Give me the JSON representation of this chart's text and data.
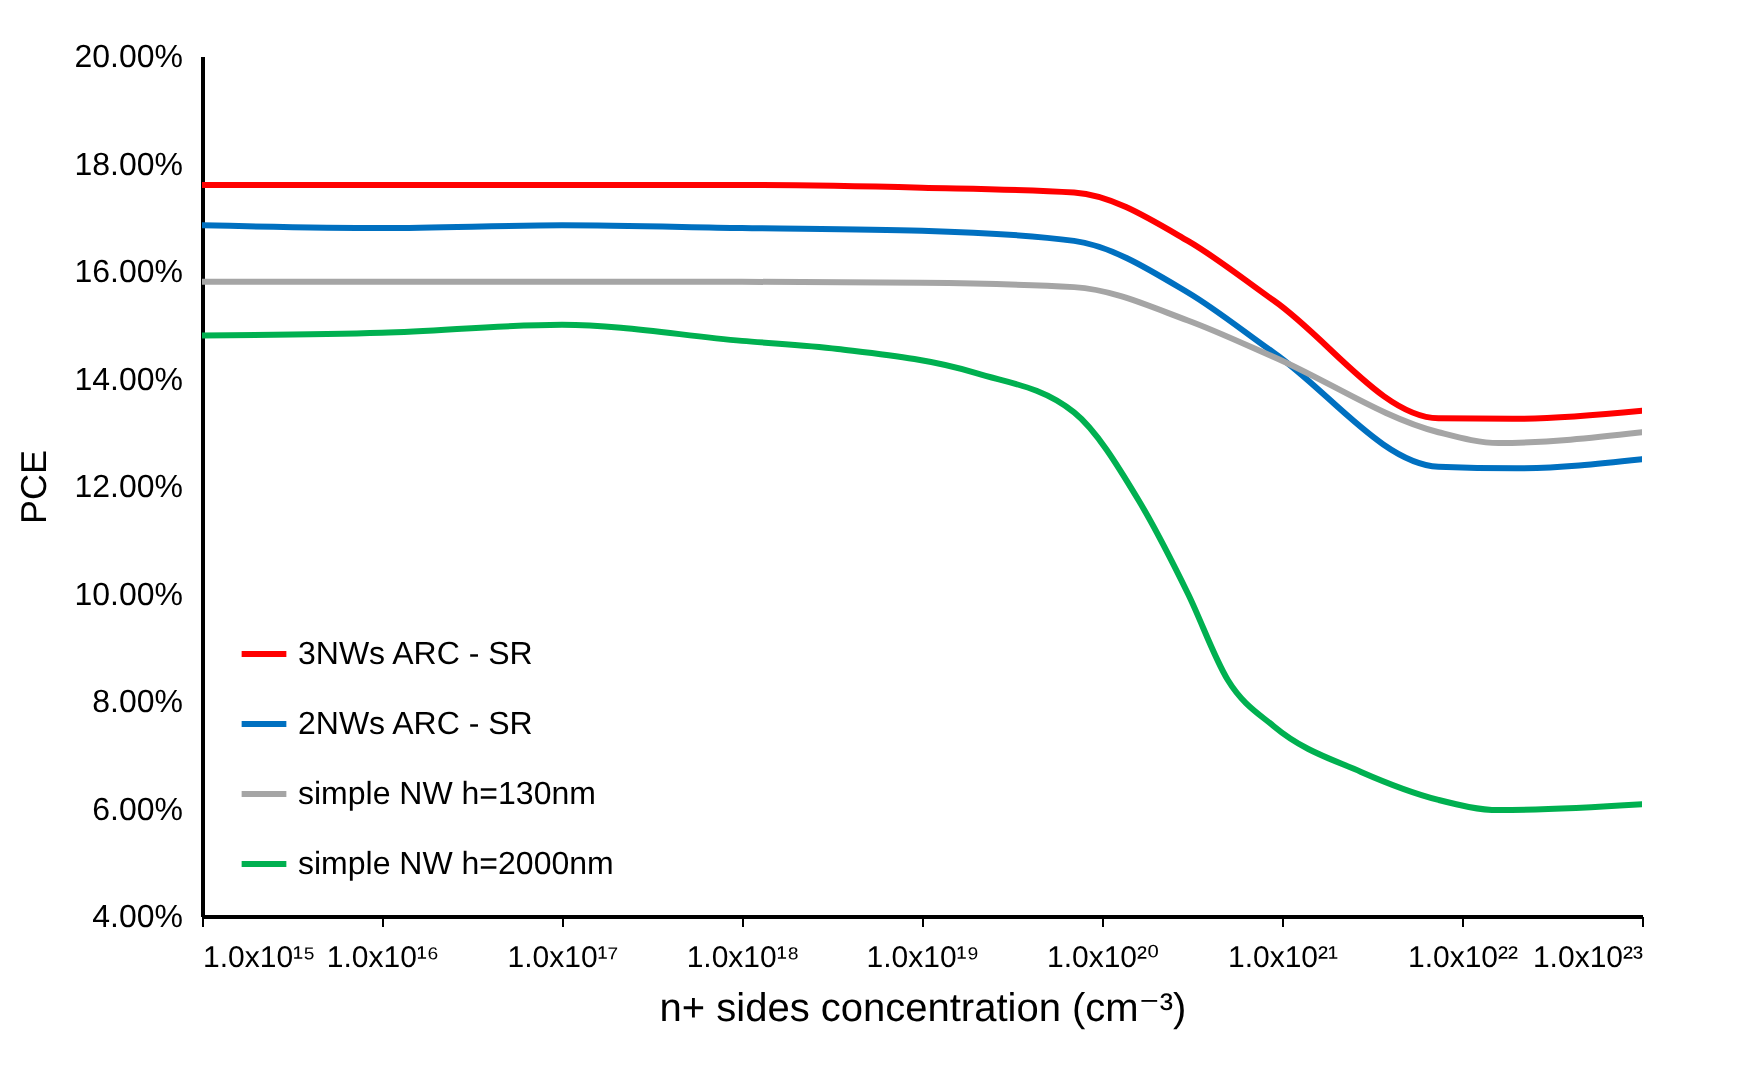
{
  "chart_data": {
    "type": "line",
    "xlabel": "n+ sides concentration (cm⁻³)",
    "ylabel": "PCE",
    "log": "x",
    "grid": false,
    "legend": "bottom left",
    "marker": "none",
    "line_style": "solid",
    "xlim": [
      1000000000000000.0,
      1e+23
    ],
    "xticks": [
      {
        "value": 1000000000000000.0,
        "label": "1.0x10¹⁵"
      },
      {
        "value": 1e+16,
        "label": "1.0x10¹⁶"
      },
      {
        "value": 1e+17,
        "label": "1.0x10¹⁷"
      },
      {
        "value": 1e+18,
        "label": "1.0x10¹⁸"
      },
      {
        "value": 1e+19,
        "label": "1.0x10¹⁹"
      },
      {
        "value": 1e+20,
        "label": "1.0x10²⁰"
      },
      {
        "value": 1e+21,
        "label": "1.0x10²¹"
      },
      {
        "value": 1e+22,
        "label": "1.0x10²²"
      },
      {
        "value": 1e+23,
        "label": "1.0x10²³"
      }
    ],
    "ylim": [
      4,
      20
    ],
    "yticks": [
      {
        "value": 4,
        "label": "4.00%"
      },
      {
        "value": 6,
        "label": "6.00%"
      },
      {
        "value": 8,
        "label": "8.00%"
      },
      {
        "value": 10,
        "label": "10.00%"
      },
      {
        "value": 12,
        "label": "12.00%"
      },
      {
        "value": 14,
        "label": "14.00%"
      },
      {
        "value": 16,
        "label": "16.00%"
      },
      {
        "value": 18,
        "label": "18.00%"
      },
      {
        "value": 20,
        "label": "20.00%"
      }
    ],
    "series": [
      {
        "name": "3NWs ARC - SR",
        "color": "#ff0000",
        "x": [
          1000000000000000.0,
          1e+16,
          1e+17,
          1e+18,
          1e+19,
          7e+19,
          3e+20,
          9e+20,
          7.4e+21,
          2e+22,
          1e+23
        ],
        "values": [
          17.6,
          17.6,
          17.6,
          17.6,
          17.55,
          17.46,
          16.56,
          15.45,
          13.26,
          13.25,
          13.4
        ]
      },
      {
        "name": "2NWs ARC - SR",
        "color": "#0070c0",
        "x": [
          1000000000000000.0,
          1e+16,
          1e+17,
          1e+18,
          1e+19,
          7e+19,
          3e+20,
          9e+20,
          7.4e+21,
          2e+22,
          1e+23
        ],
        "values": [
          16.85,
          16.8,
          16.85,
          16.8,
          16.75,
          16.56,
          15.6,
          14.48,
          12.36,
          12.33,
          12.5
        ]
      },
      {
        "name": "simple NW h=130nm",
        "color": "#a5a5a5",
        "x": [
          1000000000000000.0,
          1e+16,
          1e+17,
          1e+18,
          1e+19,
          7e+19,
          3e+20,
          9e+20,
          7.4e+21,
          1.6e+22,
          1e+23
        ],
        "values": [
          15.8,
          15.8,
          15.8,
          15.8,
          15.78,
          15.7,
          15.08,
          14.4,
          13.0,
          12.8,
          13.0
        ]
      },
      {
        "name": "simple NW h=2000nm",
        "color": "#00b050",
        "x": [
          1000000000000000.0,
          1e+16,
          1e+17,
          1e+18,
          3.4e+18,
          2e+19,
          7e+19,
          1.6e+20,
          3e+20,
          5e+20,
          9e+20,
          2.75e+21,
          7.4e+21,
          1.6e+22,
          1e+23
        ],
        "values": [
          14.8,
          14.85,
          15.0,
          14.7,
          14.55,
          14.1,
          13.37,
          11.73,
          10.0,
          8.39,
          7.53,
          6.68,
          6.16,
          5.97,
          6.08
        ]
      }
    ]
  }
}
